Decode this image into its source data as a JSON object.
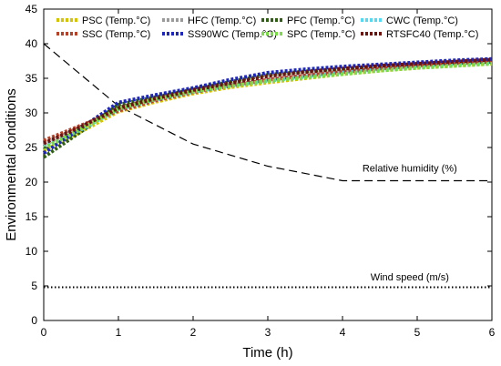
{
  "chart_data": {
    "type": "line",
    "xlabel": "Time (h)",
    "ylabel": "Environmental conditions",
    "xlim": [
      0,
      6
    ],
    "ylim": [
      0,
      45
    ],
    "xticks": [
      "0",
      "1",
      "2",
      "3",
      "4",
      "5",
      "6"
    ],
    "yticks": [
      "0",
      "5",
      "10",
      "15",
      "20",
      "25",
      "30",
      "35",
      "40",
      "45"
    ],
    "grid": false,
    "legend_position": "top",
    "series": [
      {
        "name": "PSC (Temp.°C)",
        "color": "#d4c400",
        "x": [
          0,
          0.5,
          1,
          1.5,
          2,
          2.5,
          3,
          3.5,
          4,
          4.5,
          5,
          5.5,
          6
        ],
        "y": [
          24.5,
          27.3,
          30.2,
          31.6,
          32.8,
          33.7,
          34.4,
          35.0,
          35.6,
          36.1,
          36.5,
          36.8,
          37.1
        ]
      },
      {
        "name": "HFC (Temp.°C)",
        "color": "#9a9a9a",
        "x": [
          0,
          0.5,
          1,
          1.5,
          2,
          2.5,
          3,
          3.5,
          4,
          4.5,
          5,
          5.5,
          6
        ],
        "y": [
          25.3,
          28.0,
          30.8,
          32.1,
          33.2,
          34.0,
          34.7,
          35.3,
          35.9,
          36.4,
          36.8,
          37.1,
          37.4
        ]
      },
      {
        "name": "PFC (Temp.°C)",
        "color": "#2f5e14",
        "x": [
          0,
          0.5,
          1,
          1.5,
          2,
          2.5,
          3,
          3.5,
          4,
          4.5,
          5,
          5.5,
          6
        ],
        "y": [
          23.6,
          27.3,
          31.2,
          32.3,
          33.4,
          34.5,
          35.5,
          36.0,
          36.4,
          36.7,
          37.0,
          37.2,
          37.4
        ]
      },
      {
        "name": "CWC (Temp.°C)",
        "color": "#55d9f2",
        "x": [
          0,
          0.5,
          1,
          1.5,
          2,
          2.5,
          3,
          3.5,
          4,
          4.5,
          5,
          5.5,
          6
        ],
        "y": [
          25.0,
          27.6,
          30.5,
          31.9,
          33.0,
          33.9,
          34.6,
          35.2,
          35.8,
          36.3,
          36.7,
          37.0,
          37.2
        ]
      },
      {
        "name": "SSC (Temp.°C)",
        "color": "#b5432a",
        "x": [
          0,
          0.5,
          1,
          1.5,
          2,
          2.5,
          3,
          3.5,
          4,
          4.5,
          5,
          5.5,
          6
        ],
        "y": [
          26.0,
          28.2,
          30.3,
          31.8,
          33.0,
          33.9,
          34.8,
          35.4,
          35.9,
          36.4,
          36.8,
          37.2,
          37.5
        ]
      },
      {
        "name": "SS90WC (Temp.°C)",
        "color": "#1f27b8",
        "x": [
          0,
          0.5,
          1,
          1.5,
          2,
          2.5,
          3,
          3.5,
          4,
          4.5,
          5,
          5.5,
          6
        ],
        "y": [
          24.2,
          27.8,
          31.5,
          32.6,
          33.6,
          34.8,
          35.8,
          36.3,
          36.7,
          37.0,
          37.3,
          37.6,
          37.8
        ]
      },
      {
        "name": "SPC (Temp.°C)",
        "color": "#7bdc4a",
        "x": [
          0,
          0.5,
          1,
          1.5,
          2,
          2.5,
          3,
          3.5,
          4,
          4.5,
          5,
          5.5,
          6
        ],
        "y": [
          24.9,
          27.7,
          30.6,
          32.0,
          33.1,
          33.9,
          34.6,
          35.1,
          35.6,
          36.1,
          36.5,
          36.8,
          37.1
        ]
      },
      {
        "name": "RTSFC40 (Temp.°C)",
        "color": "#6b1410",
        "x": [
          0,
          0.5,
          1,
          1.5,
          2,
          2.5,
          3,
          3.5,
          4,
          4.5,
          5,
          5.5,
          6
        ],
        "y": [
          25.6,
          28.0,
          30.7,
          32.1,
          33.3,
          34.3,
          35.3,
          35.9,
          36.4,
          36.8,
          37.1,
          37.4,
          37.7
        ]
      }
    ],
    "reference_lines": [
      {
        "label": "Relative humidity (%)",
        "style": "dashed",
        "x": [
          0,
          1,
          2,
          3,
          4,
          5,
          6
        ],
        "y": [
          40,
          31,
          25.5,
          22.3,
          20.2,
          20.2,
          20.2
        ]
      },
      {
        "label": "Wind speed (m/s)",
        "style": "dotted",
        "x": [
          0,
          6
        ],
        "y": [
          4.8,
          4.8
        ]
      }
    ]
  }
}
